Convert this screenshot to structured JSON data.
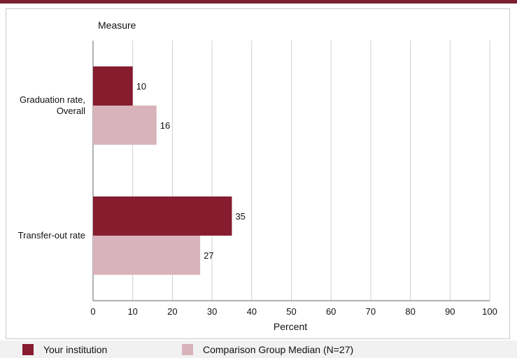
{
  "chart_data": {
    "type": "bar",
    "orientation": "horizontal",
    "title": "",
    "category_axis_label": "Measure",
    "xlabel": "Percent",
    "xlim": [
      0,
      100
    ],
    "ticks": [
      0,
      10,
      20,
      30,
      40,
      50,
      60,
      70,
      80,
      90,
      100
    ],
    "categories": [
      [
        "Graduation rate,",
        "Overall"
      ],
      [
        "Transfer-out rate"
      ]
    ],
    "series": [
      {
        "name": "Your institution",
        "color": "#861c2e",
        "values": [
          10,
          35
        ]
      },
      {
        "name": "Comparison Group Median (N=27)",
        "color": "#d9b3bb",
        "values": [
          16,
          27
        ]
      }
    ],
    "grid": true,
    "legend_position": "bottom"
  }
}
